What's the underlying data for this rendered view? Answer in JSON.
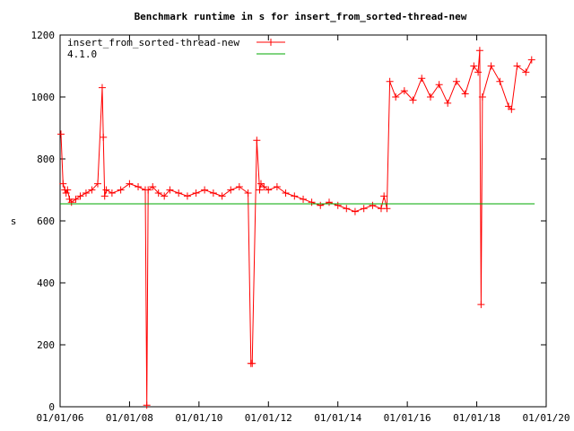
{
  "chart_data": {
    "type": "line",
    "title": "Benchmark runtime in s for insert_from_sorted-thread-new",
    "ylabel": "s",
    "xlabel": "",
    "x_ticks": [
      "01/01/06",
      "01/01/08",
      "01/01/10",
      "01/01/12",
      "01/01/14",
      "01/01/16",
      "01/01/18",
      "01/01/20"
    ],
    "y_ticks": [
      0,
      200,
      400,
      600,
      800,
      1000,
      1200
    ],
    "ylim": [
      0,
      1200
    ],
    "xlim": [
      "2006-01-01",
      "2020-01-01"
    ],
    "grid": false,
    "legend_position": "top-left",
    "series": [
      {
        "name": "insert_from_sorted-thread-new",
        "color": "#ff0000",
        "marker": "plus",
        "x": [
          "2006-01-10",
          "2006-02-01",
          "2006-02-20",
          "2006-03-05",
          "2006-03-20",
          "2006-04-10",
          "2006-05-01",
          "2006-06-15",
          "2006-08-01",
          "2006-10-01",
          "2006-12-01",
          "2007-02-01",
          "2007-03-20",
          "2007-04-01",
          "2007-04-15",
          "2007-05-01",
          "2007-07-01",
          "2007-10-01",
          "2008-01-01",
          "2008-04-01",
          "2008-06-15",
          "2008-07-01",
          "2008-07-15",
          "2008-09-01",
          "2008-11-01",
          "2009-01-01",
          "2009-03-01",
          "2009-06-01",
          "2009-09-01",
          "2009-12-01",
          "2010-03-01",
          "2010-06-01",
          "2010-09-01",
          "2010-12-01",
          "2011-03-01",
          "2011-06-01",
          "2011-07-01",
          "2011-07-15",
          "2011-09-01",
          "2011-10-01",
          "2011-10-15",
          "2011-11-15",
          "2012-01-01",
          "2012-04-01",
          "2012-07-01",
          "2012-10-01",
          "2013-01-01",
          "2013-04-01",
          "2013-07-01",
          "2013-10-01",
          "2014-01-01",
          "2014-04-01",
          "2014-07-01",
          "2014-10-01",
          "2015-01-01",
          "2015-04-01",
          "2015-05-01",
          "2015-06-01",
          "2015-07-01",
          "2015-09-01",
          "2015-12-01",
          "2016-03-01",
          "2016-06-01",
          "2016-09-01",
          "2016-12-01",
          "2017-03-01",
          "2017-06-01",
          "2017-09-01",
          "2017-12-01",
          "2018-01-15",
          "2018-02-01",
          "2018-02-15",
          "2018-03-01",
          "2018-06-01",
          "2018-09-01",
          "2018-12-01",
          "2019-01-01",
          "2019-03-01",
          "2019-06-01",
          "2019-08-01"
        ],
        "y": [
          880,
          720,
          700,
          690,
          700,
          670,
          660,
          670,
          680,
          690,
          700,
          720,
          1030,
          870,
          680,
          700,
          690,
          700,
          720,
          710,
          700,
          5,
          700,
          710,
          690,
          680,
          700,
          690,
          680,
          690,
          700,
          690,
          680,
          700,
          710,
          690,
          140,
          140,
          860,
          700,
          720,
          710,
          700,
          710,
          690,
          680,
          670,
          660,
          650,
          660,
          650,
          640,
          630,
          640,
          650,
          640,
          680,
          640,
          1050,
          1000,
          1020,
          990,
          1060,
          1000,
          1040,
          980,
          1050,
          1010,
          1100,
          1080,
          1150,
          330,
          1000,
          1100,
          1050,
          970,
          960,
          1100,
          1080,
          1120
        ]
      },
      {
        "name": "4.1.0",
        "color": "#00aa00",
        "marker": "none",
        "x": [
          "2006-01-01",
          "2019-09-01"
        ],
        "y": [
          655,
          655
        ]
      }
    ]
  }
}
